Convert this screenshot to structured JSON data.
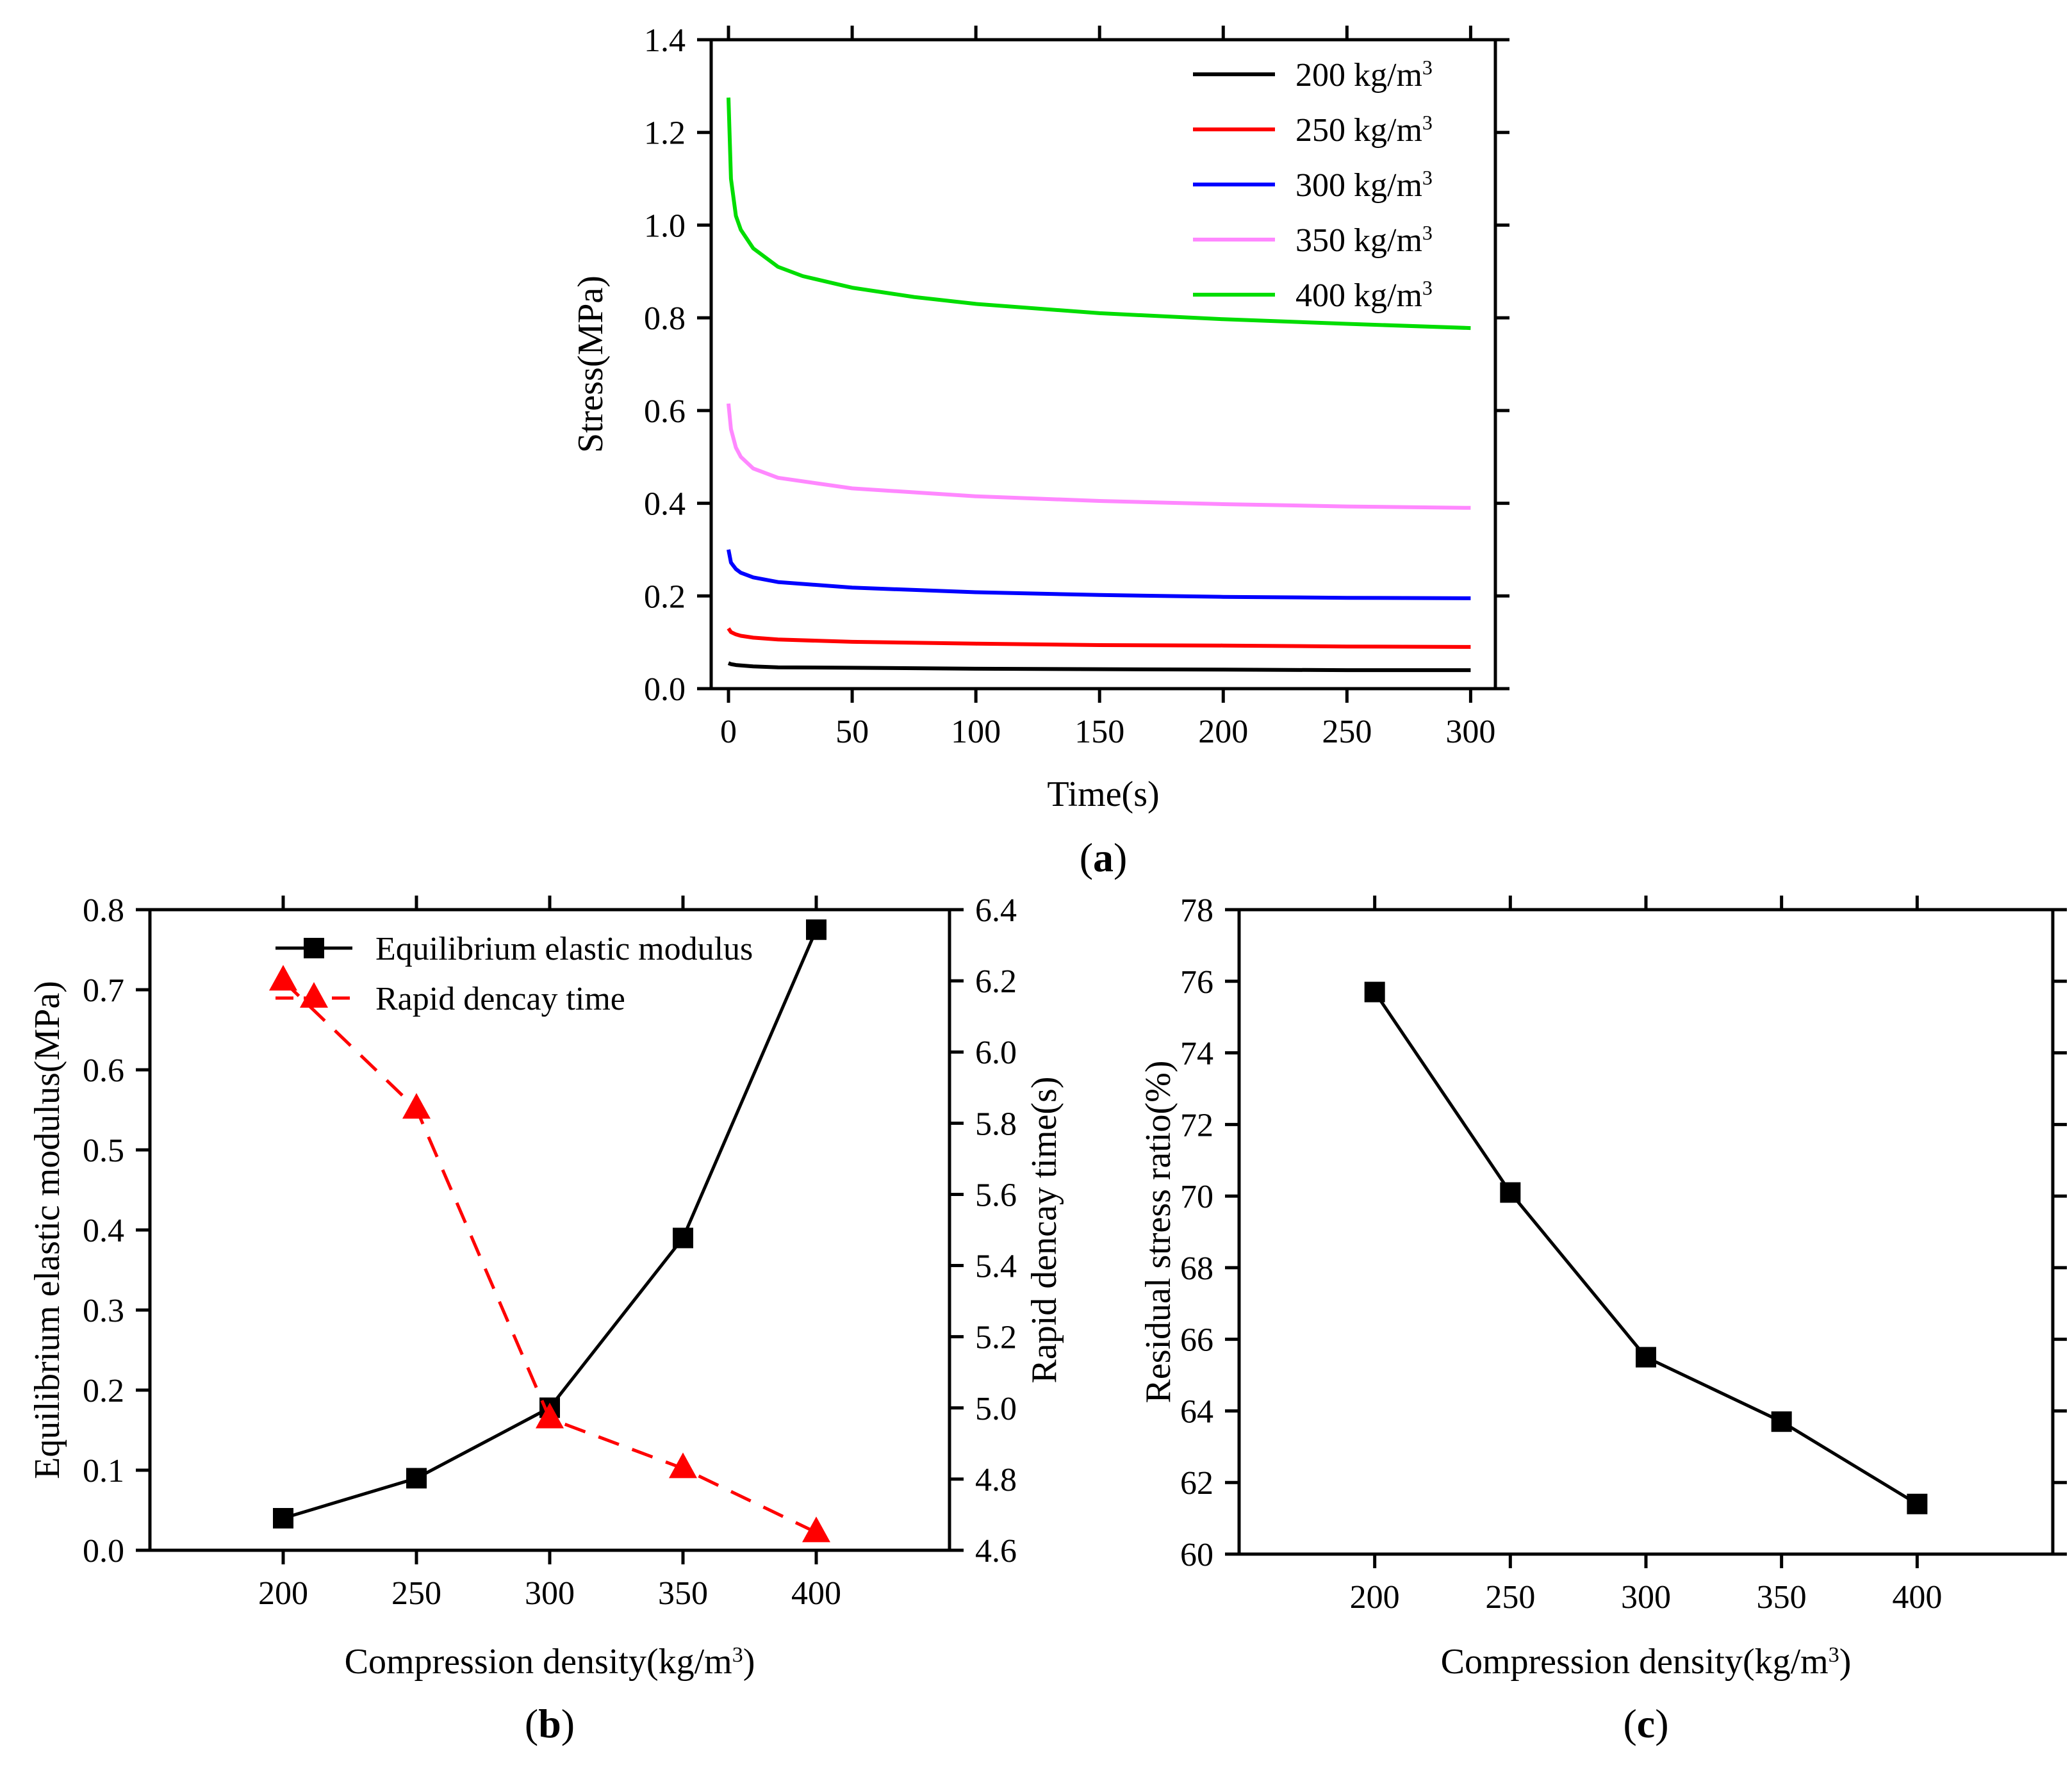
{
  "chart_data": [
    {
      "id": "a",
      "type": "line",
      "panel_label": "(a)",
      "panel_letter": "a",
      "title": "",
      "xlabel": "Time(s)",
      "ylabel": "Stress(MPa)",
      "xlim": [
        -7,
        310
      ],
      "ylim": [
        0,
        1.4
      ],
      "x_ticks": [
        0,
        50,
        100,
        150,
        200,
        250,
        300
      ],
      "y_ticks": [
        0.0,
        0.2,
        0.4,
        0.6,
        0.8,
        1.0,
        1.2,
        1.4
      ],
      "y_tick_labels": [
        "0.0",
        "0.2",
        "0.4",
        "0.6",
        "0.8",
        "1.0",
        "1.2",
        "1.4"
      ],
      "legend_position": "top-right",
      "series": [
        {
          "name": "200 kg/m3",
          "label": "200 kg/m",
          "sup": "3",
          "color": "#000000",
          "x": [
            0,
            1,
            3,
            5,
            10,
            20,
            50,
            100,
            150,
            200,
            250,
            300
          ],
          "y": [
            0.055,
            0.053,
            0.051,
            0.05,
            0.048,
            0.046,
            0.045,
            0.043,
            0.042,
            0.041,
            0.04,
            0.04
          ]
        },
        {
          "name": "250 kg/m3",
          "label": "250 kg/m",
          "sup": "3",
          "color": "#ff0000",
          "x": [
            0,
            1,
            3,
            5,
            10,
            20,
            50,
            100,
            150,
            200,
            250,
            300
          ],
          "y": [
            0.13,
            0.122,
            0.117,
            0.114,
            0.11,
            0.106,
            0.101,
            0.097,
            0.094,
            0.093,
            0.091,
            0.09
          ]
        },
        {
          "name": "300 kg/m3",
          "label": "300 kg/m",
          "sup": "3",
          "color": "#0000ff",
          "x": [
            0,
            1,
            3,
            5,
            10,
            20,
            50,
            100,
            150,
            200,
            250,
            300
          ],
          "y": [
            0.3,
            0.272,
            0.258,
            0.25,
            0.24,
            0.23,
            0.218,
            0.208,
            0.202,
            0.198,
            0.196,
            0.195
          ]
        },
        {
          "name": "350 kg/m3",
          "label": "350 kg/m",
          "sup": "3",
          "color": "#ff88ff",
          "x": [
            0,
            1,
            3,
            5,
            10,
            20,
            50,
            100,
            150,
            200,
            250,
            300
          ],
          "y": [
            0.615,
            0.56,
            0.52,
            0.5,
            0.475,
            0.455,
            0.432,
            0.415,
            0.405,
            0.398,
            0.393,
            0.39
          ]
        },
        {
          "name": "400 kg/m3",
          "label": "400 kg/m",
          "sup": "3",
          "color": "#00dd00",
          "x": [
            0,
            1,
            3,
            5,
            10,
            20,
            30,
            50,
            75,
            100,
            150,
            200,
            250,
            300
          ],
          "y": [
            1.275,
            1.1,
            1.02,
            0.99,
            0.95,
            0.91,
            0.89,
            0.865,
            0.845,
            0.83,
            0.81,
            0.797,
            0.787,
            0.778
          ]
        }
      ]
    },
    {
      "id": "b",
      "type": "line",
      "panel_label": "(b)",
      "panel_letter": "b",
      "title": "",
      "xlabel": "Compression density(kg/m",
      "xlabel_sup": "3",
      "xlabel_close": ")",
      "ylabel": "Equilibrium elastic modulus(MPa)",
      "ylabel_right": "Rapid dencay time(s)",
      "xlim": [
        150,
        450
      ],
      "ylim": [
        0,
        0.8
      ],
      "ylim_right": [
        4.6,
        6.4
      ],
      "x_ticks": [
        200,
        250,
        300,
        350,
        400
      ],
      "y_ticks": [
        0.0,
        0.1,
        0.2,
        0.3,
        0.4,
        0.5,
        0.6,
        0.7,
        0.8
      ],
      "y_tick_labels": [
        "0.0",
        "0.1",
        "0.2",
        "0.3",
        "0.4",
        "0.5",
        "0.6",
        "0.7",
        "0.8"
      ],
      "y_ticks_right": [
        4.6,
        4.8,
        5.0,
        5.2,
        5.4,
        5.6,
        5.8,
        6.0,
        6.2,
        6.4
      ],
      "y_tick_labels_right": [
        "4.6",
        "4.8",
        "5.0",
        "5.2",
        "5.4",
        "5.6",
        "5.8",
        "6.0",
        "6.2",
        "6.4"
      ],
      "legend_position": "top-center",
      "series": [
        {
          "name": "Equilibrium elastic modulus",
          "axis": "left",
          "color": "#000000",
          "marker": "square",
          "dash": false,
          "x": [
            200,
            250,
            300,
            350,
            400
          ],
          "y": [
            0.04,
            0.09,
            0.178,
            0.39,
            0.775
          ]
        },
        {
          "name": "Rapid dencay time",
          "axis": "right",
          "color": "#ff0000",
          "marker": "triangle",
          "dash": true,
          "x": [
            200,
            250,
            300,
            350,
            400
          ],
          "y": [
            6.2,
            5.84,
            4.97,
            4.83,
            4.65
          ]
        }
      ]
    },
    {
      "id": "c",
      "type": "line",
      "panel_label": "(c)",
      "panel_letter": "c",
      "title": "",
      "xlabel": "Compression density(kg/m",
      "xlabel_sup": "3",
      "xlabel_close": ")",
      "ylabel": "Residual stress ratio(%)",
      "xlim": [
        150,
        450
      ],
      "ylim": [
        60,
        78
      ],
      "x_ticks": [
        200,
        250,
        300,
        350,
        400
      ],
      "y_ticks": [
        60,
        62,
        64,
        66,
        68,
        70,
        72,
        74,
        76,
        78
      ],
      "y_tick_labels": [
        "60",
        "62",
        "64",
        "66",
        "68",
        "70",
        "72",
        "74",
        "76",
        "78"
      ],
      "series": [
        {
          "name": "Residual stress ratio",
          "axis": "left",
          "color": "#000000",
          "marker": "square",
          "dash": false,
          "x": [
            200,
            250,
            300,
            350,
            400
          ],
          "y": [
            75.7,
            70.1,
            65.5,
            63.7,
            61.4
          ]
        }
      ]
    }
  ]
}
